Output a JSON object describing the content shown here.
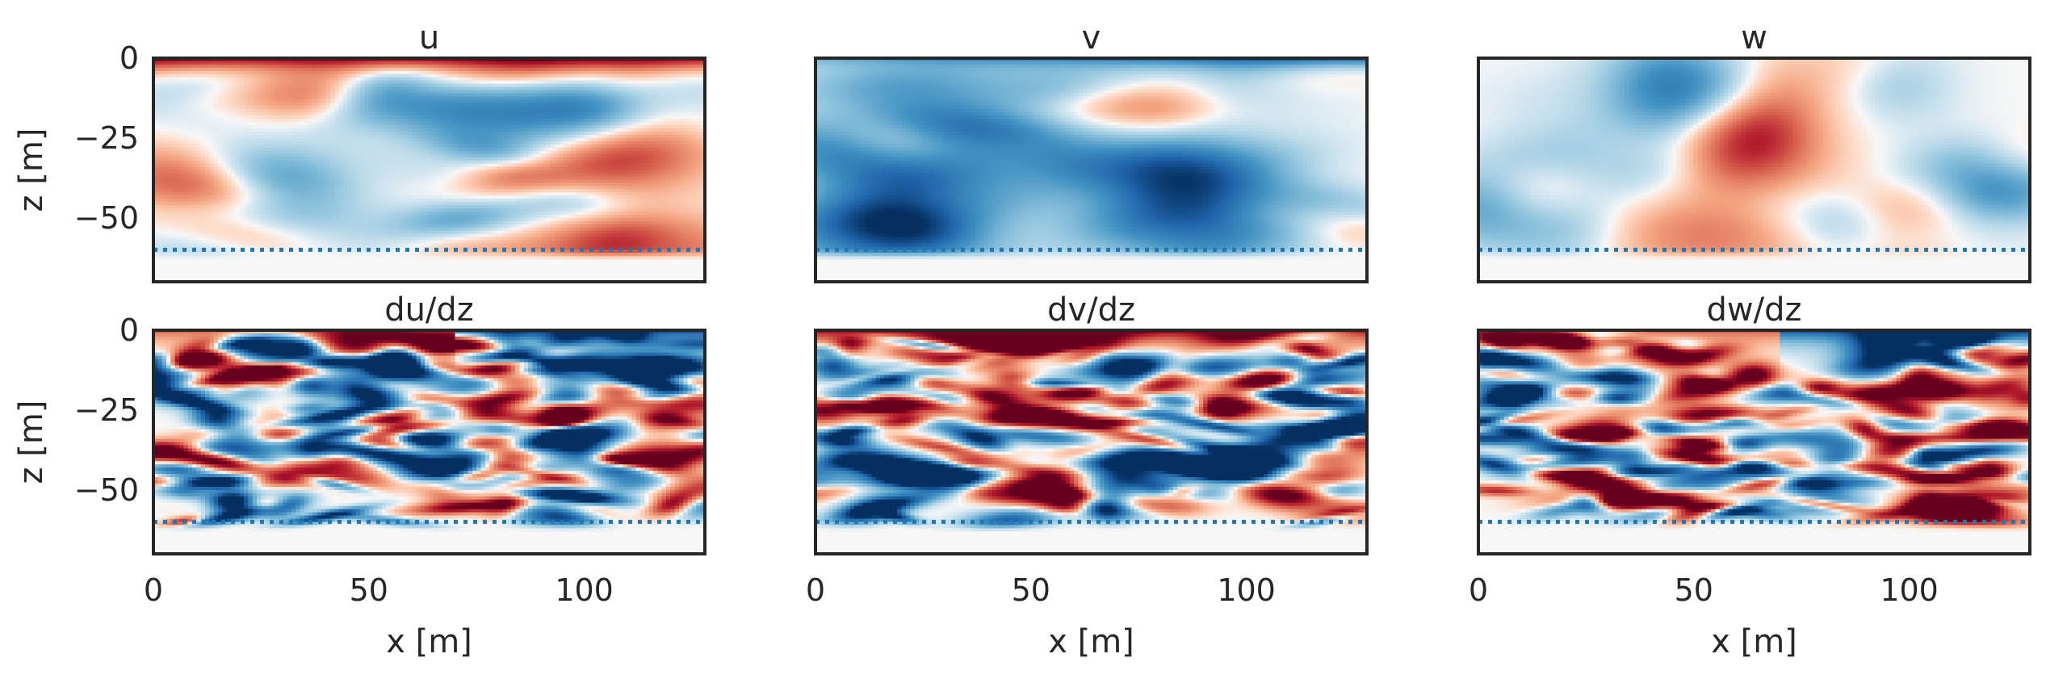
{
  "chart_data": {
    "type": "heatmap",
    "colormap": "RdBu_r",
    "colors": {
      "axes_edge": "#262626",
      "reference_line": "#1f77b4",
      "neg_strong": "#053061",
      "neutral": "#f7f7f7",
      "pos_strong": "#67001f"
    },
    "panels": [
      {
        "title": "u",
        "ylabel": "z [m]",
        "xlabel": "",
        "show_xticks": false,
        "show_yticks": true,
        "pattern": "u"
      },
      {
        "title": "v",
        "ylabel": "",
        "xlabel": "",
        "show_xticks": false,
        "show_yticks": false,
        "pattern": "v"
      },
      {
        "title": "w",
        "ylabel": "",
        "xlabel": "",
        "show_xticks": false,
        "show_yticks": false,
        "pattern": "w"
      },
      {
        "title": "du/dz",
        "ylabel": "z [m]",
        "xlabel": "x [m]",
        "show_xticks": true,
        "show_yticks": true,
        "pattern": "grad"
      },
      {
        "title": "dv/dz",
        "ylabel": "",
        "xlabel": "x [m]",
        "show_xticks": true,
        "show_yticks": false,
        "pattern": "grad"
      },
      {
        "title": "dw/dz",
        "ylabel": "",
        "xlabel": "x [m]",
        "show_xticks": true,
        "show_yticks": false,
        "pattern": "grad"
      }
    ],
    "xlim": [
      0,
      128
    ],
    "ylim": [
      -70,
      0
    ],
    "xticks": [
      0,
      50,
      100
    ],
    "xtick_labels": [
      "0",
      "50",
      "100"
    ],
    "yticks": [
      0,
      -25,
      -50
    ],
    "ytick_labels": [
      "0",
      "−25",
      "−50"
    ],
    "reference_line_z": -60,
    "reference_line_style": "dotted",
    "grid": false
  }
}
